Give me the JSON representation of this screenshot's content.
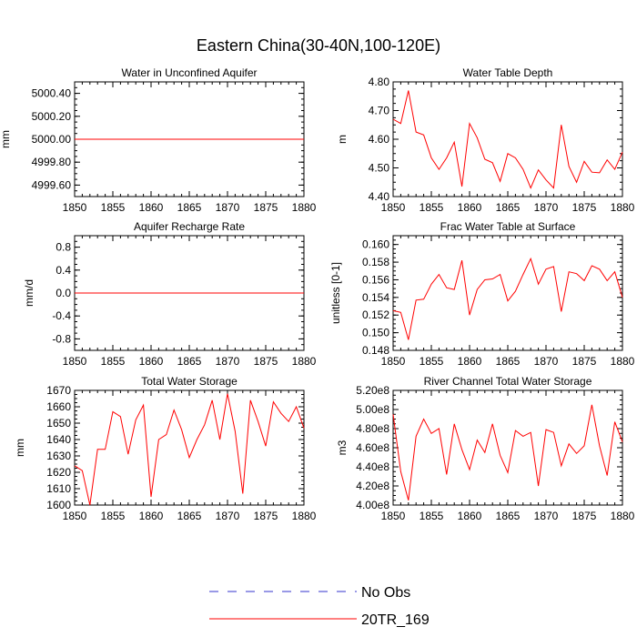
{
  "figure": {
    "title": "Eastern China(30-40N,100-120E)",
    "colors": {
      "model": "#ff0000",
      "obs": "#3333cc",
      "axis": "#000000"
    }
  },
  "legend": {
    "items": [
      {
        "label": "No Obs",
        "style": "dashed",
        "color": "#3333cc"
      },
      {
        "label": "20TR_169",
        "style": "solid",
        "color": "#ff0000"
      }
    ]
  },
  "chart_data": [
    {
      "type": "line",
      "title": "Water in Unconfined Aquifer",
      "xlabel": "",
      "ylabel": "mm",
      "xlim": [
        1850,
        1880
      ],
      "ylim": [
        4999.5,
        5000.5
      ],
      "xticks": [
        1850,
        1855,
        1860,
        1865,
        1870,
        1875,
        1880
      ],
      "yticks": [
        4999.6,
        4999.8,
        5000.0,
        5000.2,
        5000.4
      ],
      "yticklabels": [
        "4999.60",
        "4999.80",
        "5000.00",
        "5000.20",
        "5000.40"
      ],
      "series": [
        {
          "name": "20TR_169",
          "x": [
            1850,
            1851,
            1852,
            1853,
            1854,
            1855,
            1856,
            1857,
            1858,
            1859,
            1860,
            1861,
            1862,
            1863,
            1864,
            1865,
            1866,
            1867,
            1868,
            1869,
            1870,
            1871,
            1872,
            1873,
            1874,
            1875,
            1876,
            1877,
            1878,
            1879,
            1880
          ],
          "values": [
            5000,
            5000,
            5000,
            5000,
            5000,
            5000,
            5000,
            5000,
            5000,
            5000,
            5000,
            5000,
            5000,
            5000,
            5000,
            5000,
            5000,
            5000,
            5000,
            5000,
            5000,
            5000,
            5000,
            5000,
            5000,
            5000,
            5000,
            5000,
            5000,
            5000,
            5000
          ]
        }
      ]
    },
    {
      "type": "line",
      "title": "Water Table Depth",
      "xlabel": "",
      "ylabel": "m",
      "xlim": [
        1850,
        1880
      ],
      "ylim": [
        4.4,
        4.8
      ],
      "xticks": [
        1850,
        1855,
        1860,
        1865,
        1870,
        1875,
        1880
      ],
      "yticks": [
        4.4,
        4.5,
        4.6,
        4.7,
        4.8
      ],
      "yticklabels": [
        "4.40",
        "4.50",
        "4.60",
        "4.70",
        "4.80"
      ],
      "series": [
        {
          "name": "20TR_169",
          "x": [
            1850,
            1851,
            1852,
            1853,
            1854,
            1855,
            1856,
            1857,
            1858,
            1859,
            1860,
            1861,
            1862,
            1863,
            1864,
            1865,
            1866,
            1867,
            1868,
            1869,
            1870,
            1871,
            1872,
            1873,
            1874,
            1875,
            1876,
            1877,
            1878,
            1879,
            1880
          ],
          "values": [
            4.67,
            4.655,
            4.77,
            4.625,
            4.615,
            4.535,
            4.495,
            4.535,
            4.59,
            4.435,
            4.655,
            4.605,
            4.53,
            4.518,
            4.453,
            4.55,
            4.535,
            4.495,
            4.43,
            4.493,
            4.458,
            4.43,
            4.65,
            4.505,
            4.45,
            4.523,
            4.485,
            4.483,
            4.528,
            4.495,
            4.555
          ]
        }
      ]
    },
    {
      "type": "line",
      "title": "Aquifer Recharge Rate",
      "xlabel": "",
      "ylabel": "mm/d",
      "xlim": [
        1850,
        1880
      ],
      "ylim": [
        -1,
        1
      ],
      "xticks": [
        1850,
        1855,
        1860,
        1865,
        1870,
        1875,
        1880
      ],
      "yticks": [
        -0.8,
        -0.4,
        0,
        0.4,
        0.8
      ],
      "yticklabels": [
        "-0.8",
        "-0.4",
        "0.0",
        "0.4",
        "0.8"
      ],
      "series": [
        {
          "name": "20TR_169",
          "x": [
            1850,
            1851,
            1852,
            1853,
            1854,
            1855,
            1856,
            1857,
            1858,
            1859,
            1860,
            1861,
            1862,
            1863,
            1864,
            1865,
            1866,
            1867,
            1868,
            1869,
            1870,
            1871,
            1872,
            1873,
            1874,
            1875,
            1876,
            1877,
            1878,
            1879,
            1880
          ],
          "values": [
            0,
            0,
            0,
            0,
            0,
            0,
            0,
            0,
            0,
            0,
            0,
            0,
            0,
            0,
            0,
            0,
            0,
            0,
            0,
            0,
            0,
            0,
            0,
            0,
            0,
            0,
            0,
            0,
            0,
            0,
            0
          ]
        }
      ]
    },
    {
      "type": "line",
      "title": "Frac Water Table at Surface",
      "xlabel": "",
      "ylabel": "unitless [0-1]",
      "xlim": [
        1850,
        1880
      ],
      "ylim": [
        0.148,
        0.161
      ],
      "xticks": [
        1850,
        1855,
        1860,
        1865,
        1870,
        1875,
        1880
      ],
      "yticks": [
        0.148,
        0.15,
        0.152,
        0.154,
        0.156,
        0.158,
        0.16
      ],
      "yticklabels": [
        "0.148",
        "0.150",
        "0.152",
        "0.154",
        "0.156",
        "0.158",
        "0.160"
      ],
      "series": [
        {
          "name": "20TR_169",
          "x": [
            1850,
            1851,
            1852,
            1853,
            1854,
            1855,
            1856,
            1857,
            1858,
            1859,
            1860,
            1861,
            1862,
            1863,
            1864,
            1865,
            1866,
            1867,
            1868,
            1869,
            1870,
            1871,
            1872,
            1873,
            1874,
            1875,
            1876,
            1877,
            1878,
            1879,
            1880
          ],
          "values": [
            0.1525,
            0.1523,
            0.1492,
            0.1537,
            0.1538,
            0.1555,
            0.1566,
            0.1551,
            0.1549,
            0.1582,
            0.152,
            0.1549,
            0.156,
            0.1561,
            0.1566,
            0.1536,
            0.1547,
            0.1566,
            0.1584,
            0.1555,
            0.1572,
            0.1575,
            0.1524,
            0.1569,
            0.1567,
            0.1559,
            0.1576,
            0.1572,
            0.1559,
            0.1569,
            0.154
          ]
        }
      ]
    },
    {
      "type": "line",
      "title": "Total Water Storage",
      "xlabel": "",
      "ylabel": "mm",
      "xlim": [
        1850,
        1880
      ],
      "ylim": [
        1600,
        1670
      ],
      "xticks": [
        1850,
        1855,
        1860,
        1865,
        1870,
        1875,
        1880
      ],
      "yticks": [
        1600,
        1610,
        1620,
        1630,
        1640,
        1650,
        1660,
        1670
      ],
      "yticklabels": [
        "1600",
        "1610",
        "1620",
        "1630",
        "1640",
        "1650",
        "1660",
        "1670"
      ],
      "series": [
        {
          "name": "20TR_169",
          "x": [
            1850,
            1851,
            1852,
            1853,
            1854,
            1855,
            1856,
            1857,
            1858,
            1859,
            1860,
            1861,
            1862,
            1863,
            1864,
            1865,
            1866,
            1867,
            1868,
            1869,
            1870,
            1871,
            1872,
            1873,
            1874,
            1875,
            1876,
            1877,
            1878,
            1879,
            1880
          ],
          "values": [
            1624,
            1621,
            1600,
            1634,
            1634,
            1657,
            1654,
            1631,
            1652,
            1661,
            1605,
            1640,
            1643,
            1658,
            1646,
            1629,
            1640,
            1649,
            1664,
            1640,
            1668,
            1645,
            1607,
            1664,
            1651,
            1636,
            1663,
            1656,
            1651,
            1660,
            1647
          ]
        }
      ]
    },
    {
      "type": "line",
      "title": "River Channel Total Water Storage",
      "xlabel": "",
      "ylabel": "m3",
      "xlim": [
        1850,
        1880
      ],
      "ylim": [
        400000000.0,
        520000000.0
      ],
      "xticks": [
        1850,
        1855,
        1860,
        1865,
        1870,
        1875,
        1880
      ],
      "yticks": [
        400000000.0,
        420000000.0,
        440000000.0,
        460000000.0,
        480000000.0,
        500000000.0,
        520000000.0
      ],
      "yticklabels": [
        "4.00e8",
        "4.20e8",
        "4.40e8",
        "4.60e8",
        "4.80e8",
        "5.00e8",
        "5.20e8"
      ],
      "series": [
        {
          "name": "20TR_169",
          "x": [
            1850,
            1851,
            1852,
            1853,
            1854,
            1855,
            1856,
            1857,
            1858,
            1859,
            1860,
            1861,
            1862,
            1863,
            1864,
            1865,
            1866,
            1867,
            1868,
            1869,
            1870,
            1871,
            1872,
            1873,
            1874,
            1875,
            1876,
            1877,
            1878,
            1879,
            1880
          ],
          "values": [
            495000000.0,
            435000000.0,
            405000000.0,
            472000000.0,
            490000000.0,
            475000000.0,
            480000000.0,
            432000000.0,
            485000000.0,
            458000000.0,
            437000000.0,
            468000000.0,
            455000000.0,
            485000000.0,
            452000000.0,
            434000000.0,
            478000000.0,
            472000000.0,
            476000000.0,
            420000000.0,
            479000000.0,
            476000000.0,
            441000000.0,
            464000000.0,
            454000000.0,
            462000000.0,
            505000000.0,
            462000000.0,
            431000000.0,
            487000000.0,
            466000000.0
          ]
        }
      ]
    }
  ]
}
